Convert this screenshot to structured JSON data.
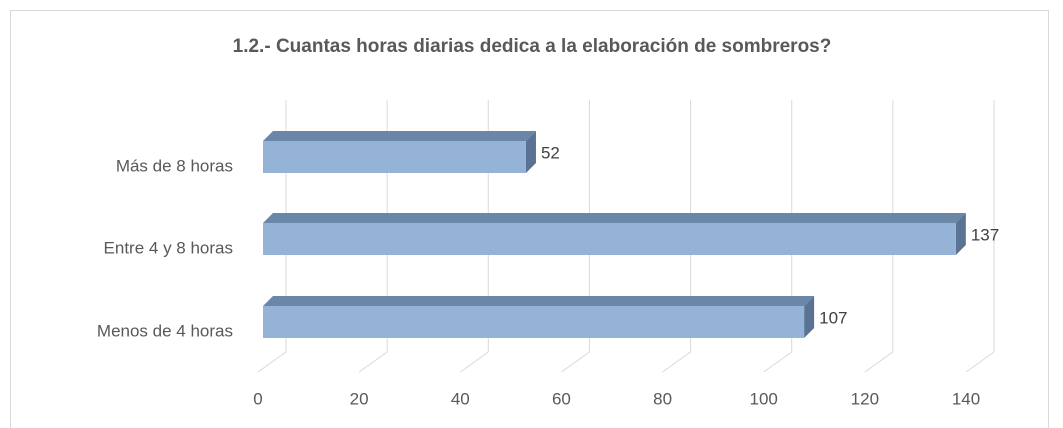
{
  "chart_data": {
    "type": "bar3d_horizontal",
    "title": "1.2.- Cuantas horas diarias dedica a la elaboración de sombreros?",
    "categories": [
      "Más de 8 horas",
      "Entre 4 y 8 horas",
      "Menos de 4 horas"
    ],
    "values": [
      52,
      137,
      107
    ],
    "color": "#95b3d7",
    "xlim": [
      0,
      140
    ],
    "xticks": [
      0,
      20,
      40,
      60,
      80,
      100,
      120,
      140
    ],
    "grid": true
  }
}
